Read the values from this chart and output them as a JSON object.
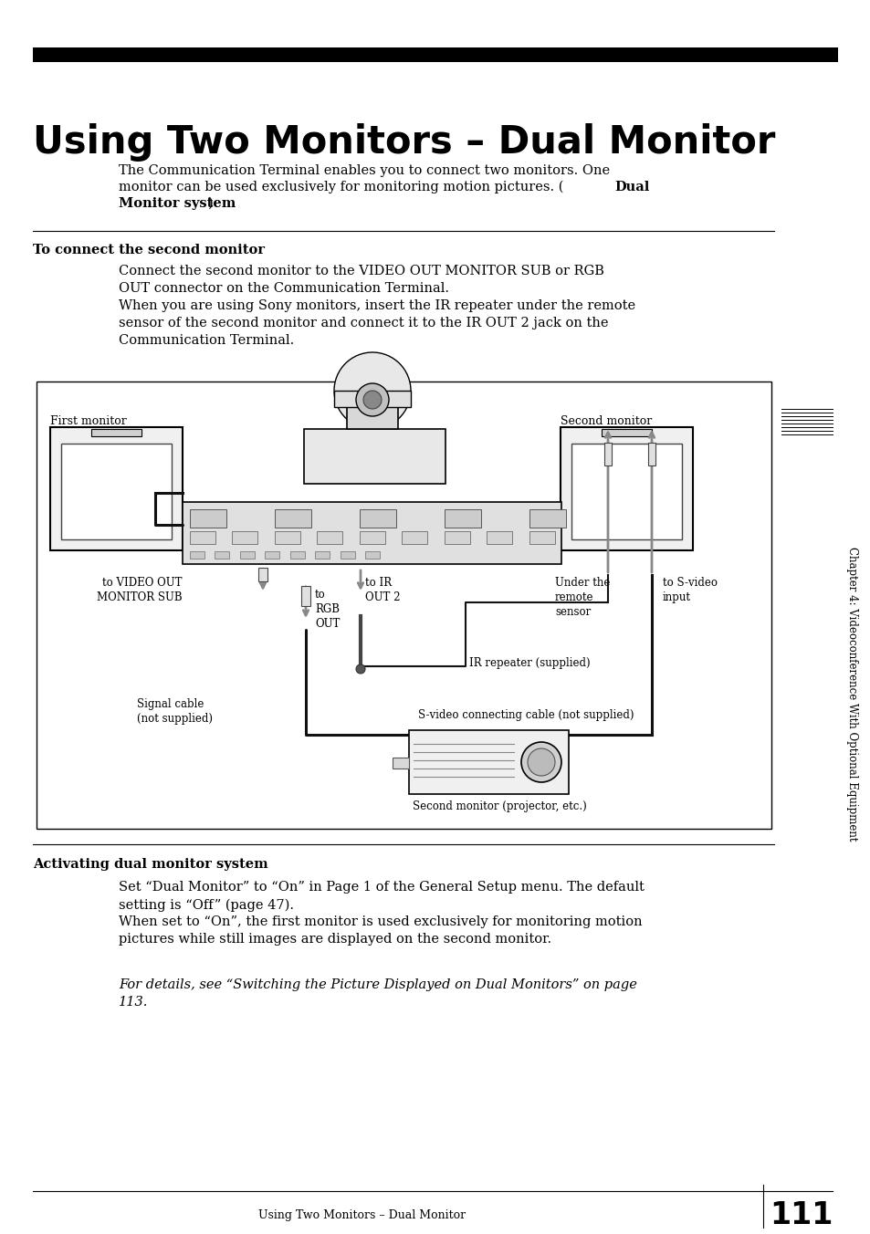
{
  "title": "Using Two Monitors – Dual Monitor",
  "page_bg": "#ffffff",
  "title_bar_color": "#000000",
  "section1_header": "To connect the second monitor",
  "section1_text_line1": "Connect the second monitor to the VIDEO OUT MONITOR SUB or RGB",
  "section1_text_line2": "OUT connector on the Communication Terminal.",
  "section1_text_line3": "When you are using Sony monitors, insert the IR repeater under the remote",
  "section1_text_line4": "sensor of the second monitor and connect it to the IR OUT 2 jack on the",
  "section1_text_line5": "Communication Terminal.",
  "intro_line1": "The Communication Terminal enables you to connect two monitors. One",
  "intro_line2": "monitor can be used exclusively for monitoring motion pictures. (",
  "intro_bold": "Dual",
  "intro_line3": "Monitor system",
  "intro_close": ")",
  "section2_header": "Activating dual monitor system",
  "section2_text": "Set “Dual Monitor” to “On” in Page 1 of the General Setup menu. The default\nsetting is “Off” (page 47).\nWhen set to “On”, the first monitor is used exclusively for monitoring motion\npictures while still images are displayed on the second monitor.",
  "section2_italic": "For details, see “Switching the Picture Displayed on Dual Monitors” on page\n113.",
  "footer_text": "Using Two Monitors – Dual Monitor",
  "page_number": "111",
  "sidebar_text": "Chapter 4: Videoconference With Optional Equipment",
  "label_first_monitor": "First monitor",
  "label_second_monitor": "Second monitor",
  "label_video_out": "to VIDEO OUT\nMONITOR SUB",
  "label_rgb_out": "to\nRGB\nOUT",
  "label_ir_out": "to IR\nOUT 2",
  "label_under_sensor": "Under the\nremote\nsensor",
  "label_s_video": "to S-video\ninput",
  "label_ir_repeater": "IR repeater (supplied)",
  "label_s_video_cable": "S-video connecting cable (not supplied)",
  "label_signal_cable": "Signal cable\n(not supplied)",
  "label_proj": "Second monitor (projector, etc.)"
}
